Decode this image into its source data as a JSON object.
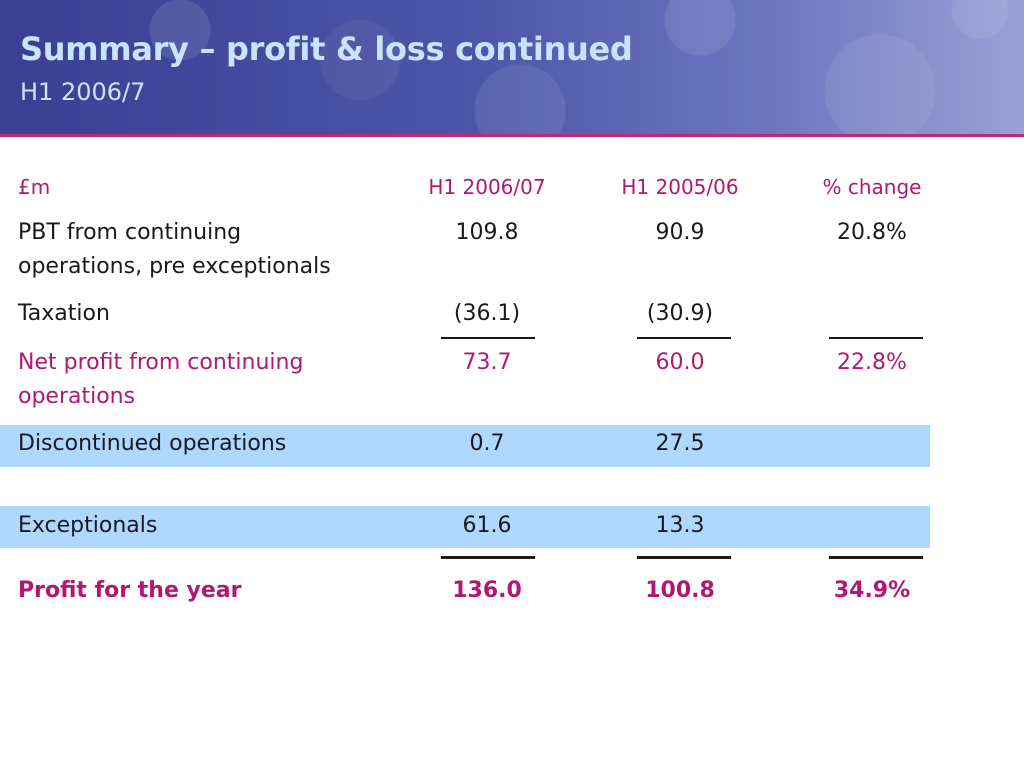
{
  "slide": {
    "title": "Summary – profit & loss continued",
    "subtitle": "H1 2006/7"
  },
  "table": {
    "headers": [
      "£m",
      "H1 2006/07",
      "H1 2005/06",
      "% change"
    ],
    "rows": [
      {
        "label_line1": "PBT from continuing",
        "label_line2": "operations, pre exceptionals",
        "h1_2006_07": "109.8",
        "h1_2005_06": "90.9",
        "change": "20.8%"
      },
      {
        "label_line1": "Taxation",
        "h1_2006_07": "(36.1)",
        "h1_2005_06": "(30.9)",
        "change": ""
      },
      {
        "label_line1": "Net profit from continuing",
        "label_line2": "operations",
        "h1_2006_07": "73.7",
        "h1_2005_06": "60.0",
        "change": "22.8%"
      },
      {
        "label_line1": "Discontinued operations",
        "h1_2006_07": "0.7",
        "h1_2005_06": "27.5",
        "change": ""
      },
      {
        "label_line1": "Exceptionals",
        "h1_2006_07": "61.6",
        "h1_2005_06": "13.3",
        "change": ""
      },
      {
        "label_line1": "Profit for the year",
        "h1_2006_07": "136.0",
        "h1_2005_06": "100.8",
        "change": "34.9%"
      }
    ]
  },
  "colors": {
    "header_background": "#4b55a8",
    "title_text": "#c9e4ff",
    "accent_magenta": "#b0196f",
    "highlight_band": "#aed8ff"
  }
}
